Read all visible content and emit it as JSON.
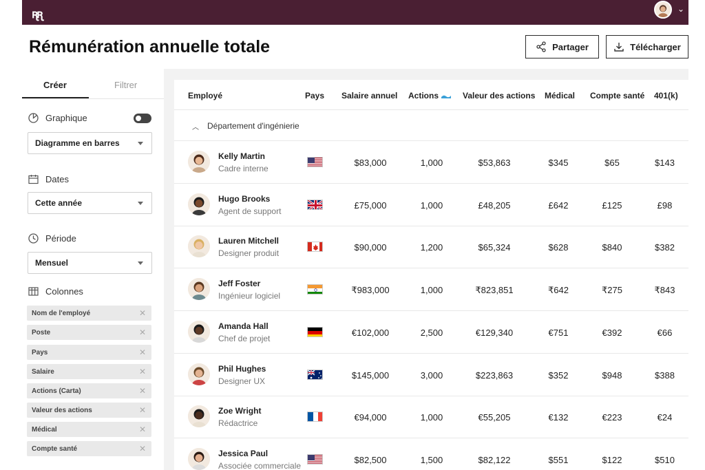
{
  "header": {
    "title": "Rémunération annuelle totale",
    "share_label": "Partager",
    "download_label": "Télécharger"
  },
  "sidebar": {
    "tabs": [
      "Créer",
      "Filtrer"
    ],
    "graph_label": "Graphique",
    "graph_select": "Diagramme en barres",
    "dates_label": "Dates",
    "dates_select": "Cette année",
    "period_label": "Période",
    "period_select": "Mensuel",
    "columns_label": "Colonnes",
    "columns": [
      "Nom de l'employé",
      "Poste",
      "Pays",
      "Salaire",
      "Actions (Carta)",
      "Valeur des actions",
      "Médical",
      "Compte santé"
    ]
  },
  "table": {
    "headers": [
      "Employé",
      "Pays",
      "Salaire annuel",
      "Actions",
      "Valeur des actions",
      "Médical",
      "Compte santé",
      "401(k)"
    ],
    "group_label": "Département d'ingénierie",
    "rows": [
      {
        "name": "Kelly Martin",
        "role": "Cadre interne",
        "flag": "us",
        "salary": "$83,000",
        "actions": "1,000",
        "value": "$53,863",
        "medical": "$345",
        "hsa": "$65",
        "k401": "$143"
      },
      {
        "name": "Hugo Brooks",
        "role": "Agent de support",
        "flag": "uk",
        "salary": "£75,000",
        "actions": "1,000",
        "value": "£48,205",
        "medical": "£642",
        "hsa": "£125",
        "k401": "£98"
      },
      {
        "name": "Lauren Mitchell",
        "role": "Designer produit",
        "flag": "ca",
        "salary": "$90,000",
        "actions": "1,200",
        "value": "$65,324",
        "medical": "$628",
        "hsa": "$840",
        "k401": "$382"
      },
      {
        "name": "Jeff Foster",
        "role": "Ingénieur logiciel",
        "flag": "in",
        "salary": "₹983,000",
        "actions": "1,000",
        "value": "₹823,851",
        "medical": "₹642",
        "hsa": "₹275",
        "k401": "₹843"
      },
      {
        "name": "Amanda Hall",
        "role": "Chef de projet",
        "flag": "de",
        "salary": "€102,000",
        "actions": "2,500",
        "value": "€129,340",
        "medical": "€751",
        "hsa": "€392",
        "k401": "€66"
      },
      {
        "name": "Phil Hughes",
        "role": "Designer UX",
        "flag": "au",
        "salary": "$145,000",
        "actions": "3,000",
        "value": "$223,863",
        "medical": "$352",
        "hsa": "$948",
        "k401": "$388"
      },
      {
        "name": "Zoe Wright",
        "role": "Rédactrice",
        "flag": "fr",
        "salary": "€94,000",
        "actions": "1,000",
        "value": "€55,205",
        "medical": "€132",
        "hsa": "€223",
        "k401": "€24"
      },
      {
        "name": "Jessica Paul",
        "role": "Associée commerciale",
        "flag": "us",
        "salary": "$82,500",
        "actions": "1,500",
        "value": "$82,122",
        "medical": "$551",
        "hsa": "$122",
        "k401": "$510"
      }
    ]
  }
}
